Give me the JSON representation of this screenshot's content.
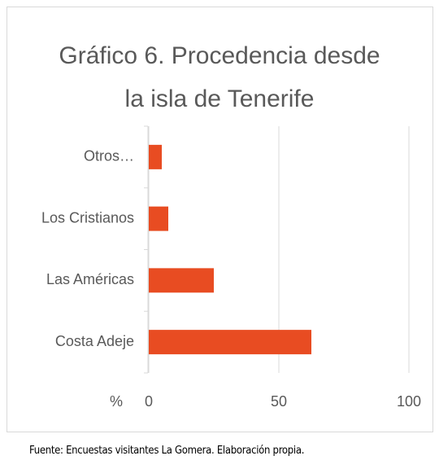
{
  "chart_data": {
    "type": "bar",
    "orientation": "horizontal",
    "title": "Gráfico 6. Procedencia desde la isla de Tenerife",
    "categories": [
      "Otros…",
      "Los Cristianos",
      "Las Américas",
      "Costa Adeje"
    ],
    "values": [
      5,
      7.5,
      25,
      62.5
    ],
    "color": "#e84c22",
    "xlabel": "%",
    "xlim": [
      0,
      100
    ],
    "xticks": [
      0,
      50,
      100
    ],
    "grid": true,
    "source": "Fuente: Encuestas visitantes La Gomera. Elaboración propia."
  }
}
